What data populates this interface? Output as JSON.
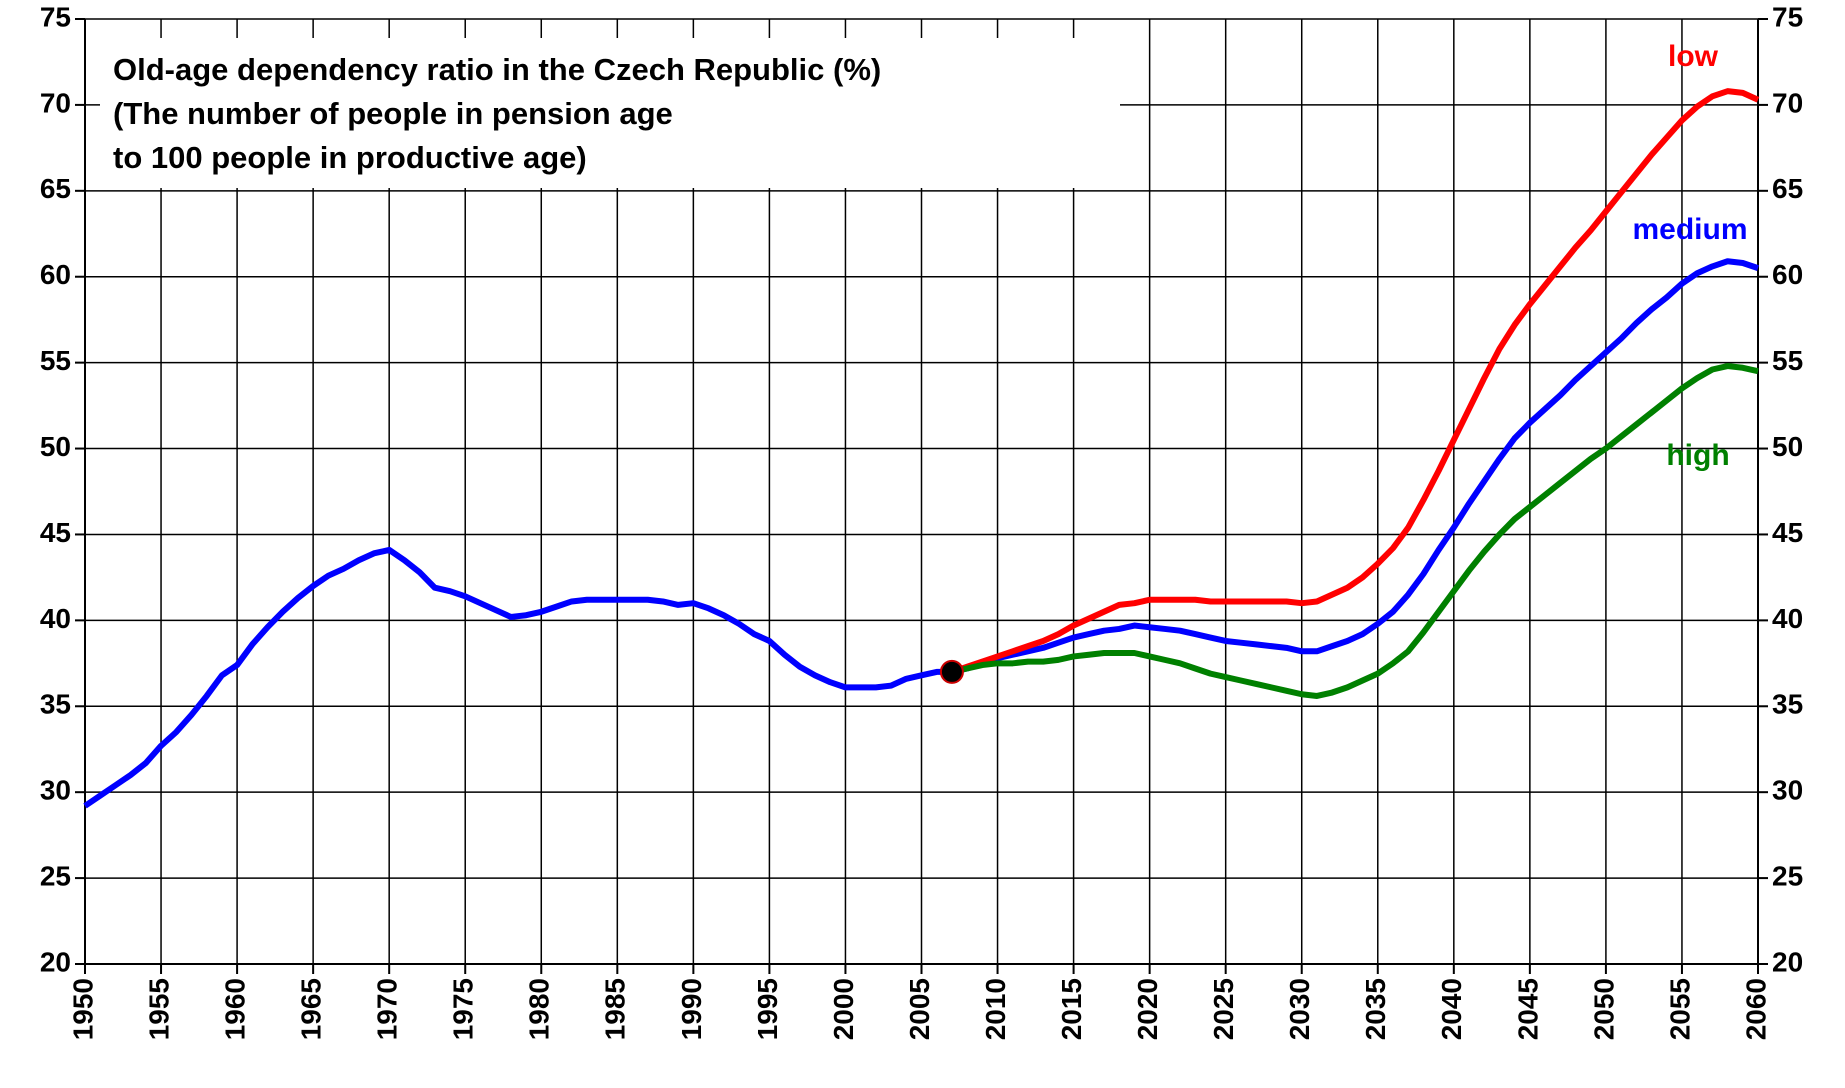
{
  "chart_data": {
    "type": "line",
    "title_lines": [
      "Old-age dependency ratio in the Czech Republic (%)",
      "(The number of people in pension age",
      "to 100 people in productive age)"
    ],
    "x": [
      1950,
      1951,
      1952,
      1953,
      1954,
      1955,
      1956,
      1957,
      1958,
      1959,
      1960,
      1961,
      1962,
      1963,
      1964,
      1965,
      1966,
      1967,
      1968,
      1969,
      1970,
      1971,
      1972,
      1973,
      1974,
      1975,
      1976,
      1977,
      1978,
      1979,
      1980,
      1981,
      1982,
      1983,
      1984,
      1985,
      1986,
      1987,
      1988,
      1989,
      1990,
      1991,
      1992,
      1993,
      1994,
      1995,
      1996,
      1997,
      1998,
      1999,
      2000,
      2001,
      2002,
      2003,
      2004,
      2005,
      2006,
      2007,
      2008,
      2009,
      2010,
      2011,
      2012,
      2013,
      2014,
      2015,
      2016,
      2017,
      2018,
      2019,
      2020,
      2021,
      2022,
      2023,
      2024,
      2025,
      2026,
      2027,
      2028,
      2029,
      2030,
      2031,
      2032,
      2033,
      2034,
      2035,
      2036,
      2037,
      2038,
      2039,
      2040,
      2041,
      2042,
      2043,
      2044,
      2045,
      2046,
      2047,
      2048,
      2049,
      2050,
      2051,
      2052,
      2053,
      2054,
      2055,
      2056,
      2057,
      2058,
      2059,
      2060
    ],
    "series": [
      {
        "name": "low",
        "color": "#ff0000",
        "values": [
          null,
          null,
          null,
          null,
          null,
          null,
          null,
          null,
          null,
          null,
          null,
          null,
          null,
          null,
          null,
          null,
          null,
          null,
          null,
          null,
          null,
          null,
          null,
          null,
          null,
          null,
          null,
          null,
          null,
          null,
          null,
          null,
          null,
          null,
          null,
          null,
          null,
          null,
          null,
          null,
          null,
          null,
          null,
          null,
          null,
          null,
          null,
          null,
          null,
          null,
          null,
          null,
          null,
          null,
          null,
          null,
          null,
          37.0,
          37.3,
          37.6,
          37.9,
          38.2,
          38.5,
          38.8,
          39.2,
          39.7,
          40.1,
          40.5,
          40.9,
          41.0,
          41.2,
          41.2,
          41.2,
          41.2,
          41.1,
          41.1,
          41.1,
          41.1,
          41.1,
          41.1,
          41.0,
          41.1,
          41.5,
          41.9,
          42.5,
          43.3,
          44.2,
          45.4,
          47.0,
          48.7,
          50.5,
          52.3,
          54.1,
          55.8,
          57.2,
          58.4,
          59.5,
          60.6,
          61.7,
          62.7,
          63.8,
          64.9,
          66.0,
          67.1,
          68.1,
          69.1,
          69.9,
          70.5,
          70.8,
          70.7,
          70.3
        ]
      },
      {
        "name": "medium",
        "color": "#0000ff",
        "values": [
          29.2,
          29.8,
          30.4,
          31.0,
          31.7,
          32.7,
          33.5,
          34.5,
          35.6,
          36.8,
          37.4,
          38.6,
          39.6,
          40.5,
          41.3,
          42.0,
          42.6,
          43.0,
          43.5,
          43.9,
          44.1,
          43.5,
          42.8,
          41.9,
          41.7,
          41.4,
          41.0,
          40.6,
          40.2,
          40.3,
          40.5,
          40.8,
          41.1,
          41.2,
          41.2,
          41.2,
          41.2,
          41.2,
          41.1,
          40.9,
          41.0,
          40.7,
          40.3,
          39.8,
          39.2,
          38.8,
          38.0,
          37.3,
          36.8,
          36.4,
          36.1,
          36.1,
          36.1,
          36.2,
          36.6,
          36.8,
          37.0,
          37.0,
          37.2,
          37.5,
          37.8,
          38.0,
          38.2,
          38.4,
          38.7,
          39.0,
          39.2,
          39.4,
          39.5,
          39.7,
          39.6,
          39.5,
          39.4,
          39.2,
          39.0,
          38.8,
          38.7,
          38.6,
          38.5,
          38.4,
          38.2,
          38.2,
          38.5,
          38.8,
          39.2,
          39.8,
          40.5,
          41.5,
          42.7,
          44.1,
          45.4,
          46.8,
          48.1,
          49.4,
          50.6,
          51.5,
          52.3,
          53.1,
          54.0,
          54.8,
          55.6,
          56.4,
          57.3,
          58.1,
          58.8,
          59.6,
          60.2,
          60.6,
          60.9,
          60.8,
          60.5
        ]
      },
      {
        "name": "high",
        "color": "#008000",
        "values": [
          null,
          null,
          null,
          null,
          null,
          null,
          null,
          null,
          null,
          null,
          null,
          null,
          null,
          null,
          null,
          null,
          null,
          null,
          null,
          null,
          null,
          null,
          null,
          null,
          null,
          null,
          null,
          null,
          null,
          null,
          null,
          null,
          null,
          null,
          null,
          null,
          null,
          null,
          null,
          null,
          null,
          null,
          null,
          null,
          null,
          null,
          null,
          null,
          null,
          null,
          null,
          null,
          null,
          null,
          null,
          null,
          null,
          37.0,
          37.2,
          37.4,
          37.5,
          37.5,
          37.6,
          37.6,
          37.7,
          37.9,
          38.0,
          38.1,
          38.1,
          38.1,
          37.9,
          37.7,
          37.5,
          37.2,
          36.9,
          36.7,
          36.5,
          36.3,
          36.1,
          35.9,
          35.7,
          35.6,
          35.8,
          36.1,
          36.5,
          36.9,
          37.5,
          38.2,
          39.3,
          40.5,
          41.7,
          42.9,
          44.0,
          45.0,
          45.9,
          46.6,
          47.3,
          48.0,
          48.7,
          49.4,
          50.0,
          50.7,
          51.4,
          52.1,
          52.8,
          53.5,
          54.1,
          54.6,
          54.8,
          54.7,
          54.5
        ]
      }
    ],
    "marker": {
      "x": 2007,
      "y": 37
    },
    "xlim": [
      1950,
      2060
    ],
    "xticks": [
      1950,
      1955,
      1960,
      1965,
      1970,
      1975,
      1980,
      1985,
      1990,
      1995,
      2000,
      2005,
      2010,
      2015,
      2020,
      2025,
      2030,
      2035,
      2040,
      2045,
      2050,
      2055,
      2060
    ],
    "ylim": [
      20,
      75
    ],
    "yticks": [
      20,
      25,
      30,
      35,
      40,
      45,
      50,
      55,
      60,
      65,
      70,
      75
    ],
    "y2lim": [
      20,
      75
    ],
    "y2ticks": [
      20,
      25,
      30,
      35,
      40,
      45,
      50,
      55,
      60,
      65,
      70,
      75
    ],
    "grid": true
  }
}
